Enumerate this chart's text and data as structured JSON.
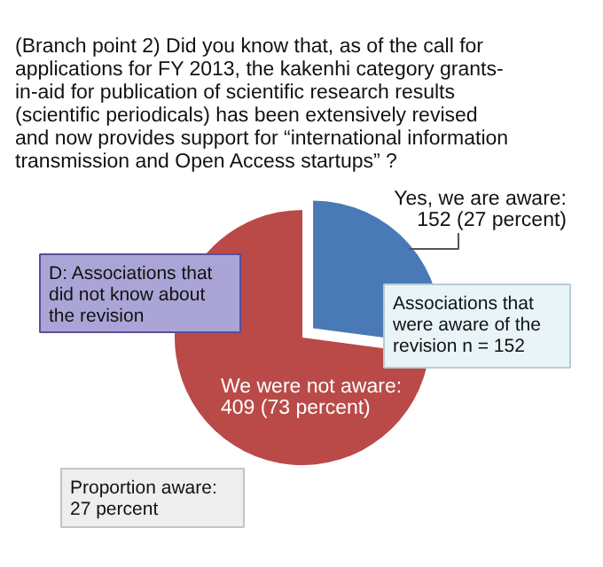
{
  "chart_data": {
    "type": "pie",
    "title": "(Branch point 2) Did you know that, as of the call for applications for FY 2013, the kakenhi category grants-in-aid for publication of scientific research results (scientific periodicals) has been extensively revised and now provides support for “international information transmission and Open Access startups” ?",
    "categories": [
      "Yes, we are aware: 152 (27 percent)",
      "We were not aware: 409 (73 percent)"
    ],
    "values": [
      152,
      409
    ],
    "colors": [
      "#4a7ab5",
      "#b94a48"
    ],
    "annotations": [
      "D: Associations that did not know about the revision",
      "Associations that were aware of the revision  n = 152",
      "Proportion aware: 27 percent"
    ]
  }
}
